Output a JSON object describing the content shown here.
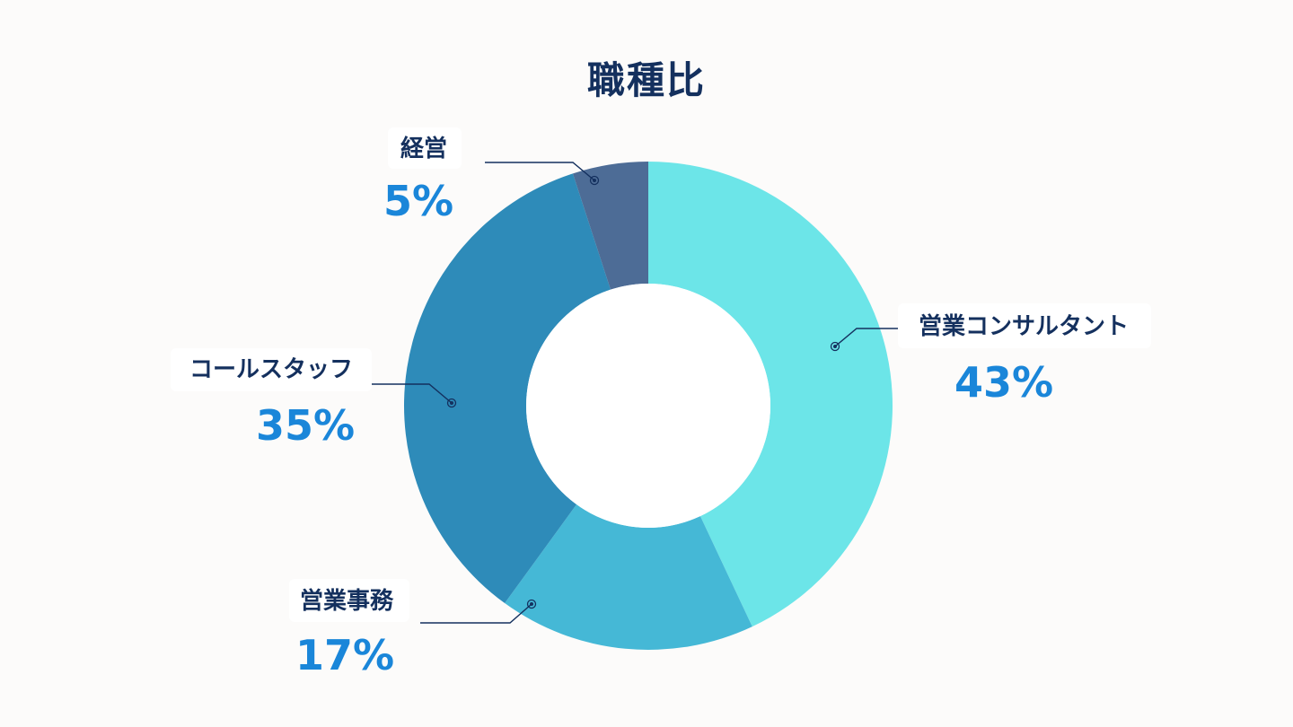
{
  "chart_data": {
    "type": "pie",
    "donut": true,
    "title": "職種比",
    "slices": [
      {
        "label": "営業コンサルタント",
        "value": 43,
        "display": "43%",
        "color": "#6ce5e8"
      },
      {
        "label": "営業事務",
        "value": 17,
        "display": "17%",
        "color": "#45b8d6"
      },
      {
        "label": "コールスタッフ",
        "value": 35,
        "display": "35%",
        "color": "#2e8bb9"
      },
      {
        "label": "経営",
        "value": 5,
        "display": "5%",
        "color": "#4d6c96"
      }
    ],
    "start": "12 o'clock",
    "direction": "clockwise",
    "legend": "none"
  },
  "colors": {
    "background": "#fcfbfa",
    "title": "#14305e",
    "label_name": "#14305e",
    "label_value": "#1a86d9",
    "leader_line": "#14305e"
  }
}
